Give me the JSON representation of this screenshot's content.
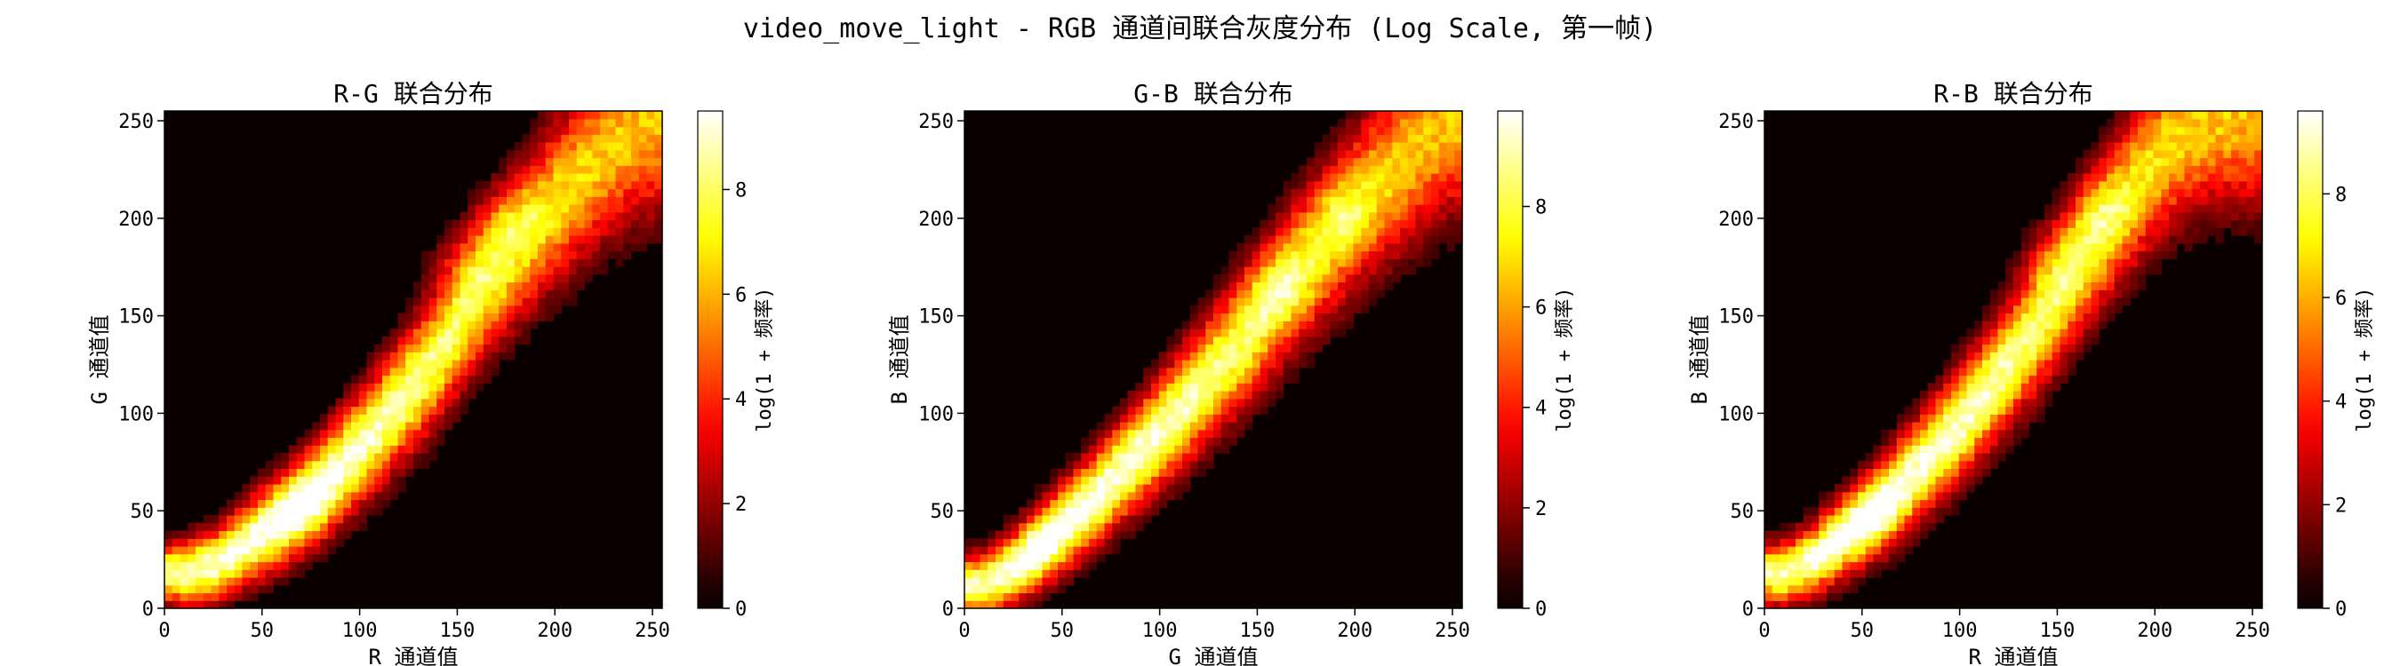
{
  "suptitle": "video_move_light - RGB 通道间联合灰度分布 (Log Scale, 第一帧)",
  "chart_data": [
    {
      "type": "heatmap",
      "title": "R-G 联合分布",
      "xlabel": "R 通道值",
      "ylabel": "G 通道值",
      "xlim": [
        0,
        255
      ],
      "ylim": [
        0,
        255
      ],
      "xticks": [
        0,
        50,
        100,
        150,
        200,
        250
      ],
      "yticks": [
        0,
        50,
        100,
        150,
        200,
        250
      ],
      "colormap": "hot",
      "colorbar": {
        "label": "log(1 + 频率)",
        "range": [
          0,
          9.5
        ],
        "ticks": [
          0,
          2,
          4,
          6,
          8
        ]
      },
      "bins": 64,
      "ridge": [
        [
          10,
          18
        ],
        [
          25,
          22
        ],
        [
          40,
          32
        ],
        [
          60,
          45
        ],
        [
          80,
          62
        ],
        [
          100,
          82
        ],
        [
          120,
          105
        ],
        [
          140,
          130
        ],
        [
          160,
          160
        ],
        [
          180,
          185
        ],
        [
          200,
          208
        ],
        [
          220,
          228
        ],
        [
          240,
          245
        ],
        [
          255,
          252
        ]
      ],
      "peak_points": [
        [
          70,
          52
        ],
        [
          150,
          178
        ],
        [
          175,
          200
        ]
      ],
      "peak_value": 9.5
    },
    {
      "type": "heatmap",
      "title": "G-B 联合分布",
      "xlabel": "G 通道值",
      "ylabel": "B 通道值",
      "xlim": [
        0,
        255
      ],
      "ylim": [
        0,
        255
      ],
      "xticks": [
        0,
        50,
        100,
        150,
        200,
        250
      ],
      "yticks": [
        0,
        50,
        100,
        150,
        200,
        250
      ],
      "colormap": "hot",
      "colorbar": {
        "label": "log(1 + 频率)",
        "range": [
          0,
          9.9
        ],
        "ticks": [
          0,
          2,
          4,
          6,
          8
        ]
      },
      "bins": 64,
      "ridge": [
        [
          10,
          12
        ],
        [
          25,
          20
        ],
        [
          45,
          38
        ],
        [
          65,
          55
        ],
        [
          85,
          75
        ],
        [
          105,
          95
        ],
        [
          125,
          118
        ],
        [
          145,
          140
        ],
        [
          165,
          165
        ],
        [
          185,
          188
        ],
        [
          205,
          210
        ],
        [
          225,
          230
        ],
        [
          245,
          248
        ],
        [
          255,
          252
        ]
      ],
      "peak_points": [
        [
          40,
          30
        ],
        [
          160,
          165
        ],
        [
          195,
          200
        ]
      ],
      "peak_value": 9.9
    },
    {
      "type": "heatmap",
      "title": "R-B 联合分布",
      "xlabel": "R 通道值",
      "ylabel": "B 通道值",
      "xlim": [
        0,
        255
      ],
      "ylim": [
        0,
        255
      ],
      "xticks": [
        0,
        50,
        100,
        150,
        200,
        250
      ],
      "yticks": [
        0,
        50,
        100,
        150,
        200,
        250
      ],
      "colormap": "hot",
      "colorbar": {
        "label": "log(1 + 频率)",
        "range": [
          0,
          9.6
        ],
        "ticks": [
          0,
          2,
          4,
          6,
          8
        ]
      },
      "bins": 64,
      "ridge": [
        [
          10,
          18
        ],
        [
          25,
          25
        ],
        [
          45,
          40
        ],
        [
          65,
          58
        ],
        [
          85,
          78
        ],
        [
          105,
          100
        ],
        [
          125,
          125
        ],
        [
          145,
          152
        ],
        [
          165,
          182
        ],
        [
          185,
          210
        ],
        [
          205,
          235
        ],
        [
          225,
          250
        ],
        [
          255,
          255
        ]
      ],
      "peak_points": [
        [
          55,
          45
        ],
        [
          145,
          180
        ],
        [
          170,
          205
        ]
      ],
      "peak_value": 9.6
    }
  ]
}
